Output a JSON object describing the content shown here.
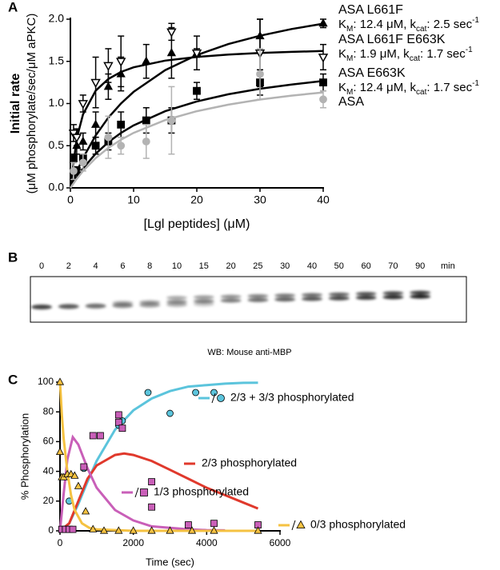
{
  "chart_data": [
    {
      "type": "scatter",
      "panel": "A",
      "y_title": "Initial rate",
      "y_subtitle": "(μM phosphorylate/sec/μM aPKC)",
      "x_title": "[Lgl peptides] (μM)",
      "xlim": [
        0,
        40
      ],
      "xticks": [
        0,
        10,
        20,
        30,
        40
      ],
      "ylim": [
        0,
        2
      ],
      "yticks": [
        {
          "value": 0,
          "label": "0.0"
        },
        {
          "value": 0.5,
          "label": "0.5"
        },
        {
          "value": 1,
          "label": "1.0"
        },
        {
          "value": 1.5,
          "label": "1.5"
        },
        {
          "value": 2,
          "label": "2.0"
        }
      ],
      "series": [
        {
          "name": "ASA L661F",
          "annotation": [
            "K",
            "M",
            ": 12.4 μM,  k",
            "cat",
            ": 2.5 sec",
            "-1"
          ],
          "color": "#000000",
          "marker": "triangle",
          "x": [
            1,
            2,
            4,
            6,
            8,
            12,
            16,
            20,
            30,
            40
          ],
          "values": [
            0.5,
            0.55,
            0.75,
            1.2,
            1.35,
            1.5,
            1.6,
            1.6,
            1.8,
            1.95
          ],
          "errors": [
            0.1,
            0.1,
            0.15,
            0.15,
            0.2,
            0.2,
            0.3,
            0.2,
            0.2,
            0.05
          ],
          "fit": {
            "x": [
              0,
              1,
              2,
              4,
              6,
              8,
              10,
              15,
              20,
              25,
              30,
              35,
              40
            ],
            "values": [
              0,
              0.19,
              0.354,
              0.622,
              0.832,
              1.0,
              1.138,
              1.396,
              1.574,
              1.705,
              1.804,
              1.883,
              1.947
            ]
          }
        },
        {
          "name": "ASA L661F E663K",
          "annotation": [
            "K",
            "M",
            ": 1.9 μM,  k",
            "cat",
            ": 1.7 sec",
            "-1"
          ],
          "color": "#000000",
          "marker": "triangle-down-open",
          "x": [
            0.5,
            1,
            2,
            4,
            6,
            8,
            16,
            20,
            30,
            40
          ],
          "values": [
            0.65,
            0.6,
            1.0,
            1.25,
            1.45,
            1.5,
            1.85,
            1.6,
            1.6,
            1.55
          ],
          "errors": [
            0.1,
            0.1,
            0.1,
            0.3,
            0.2,
            0.3,
            0.1,
            0.05,
            0.4,
            0.15
          ],
          "fit": {
            "x": [
              0,
              1,
              2,
              4,
              6,
              8,
              10,
              15,
              20,
              25,
              30,
              35,
              40
            ],
            "values": [
              0,
              0.586,
              0.872,
              1.153,
              1.291,
              1.374,
              1.429,
              1.509,
              1.553,
              1.58,
              1.599,
              1.612,
              1.623
            ]
          }
        },
        {
          "name": "ASA E663K",
          "annotation": [
            "K",
            "M",
            ": 12.4 μM,  k",
            "cat",
            ": 1.7 sec",
            "-1"
          ],
          "color": "#000000",
          "marker": "square",
          "x": [
            0.5,
            1,
            2,
            4,
            6,
            8,
            12,
            16,
            20,
            30,
            40
          ],
          "values": [
            0.35,
            0.2,
            0.35,
            0.5,
            0.55,
            0.75,
            0.8,
            0.8,
            1.15,
            1.25,
            1.25
          ],
          "errors": [
            0.05,
            0.05,
            0.05,
            0.1,
            0.1,
            0.15,
            0.15,
            0.15,
            0.1,
            0.15,
            0.1
          ],
          "fit": {
            "x": [
              0,
              1,
              2,
              4,
              6,
              8,
              10,
              15,
              20,
              25,
              30,
              35,
              40
            ],
            "values": [
              0,
              0.124,
              0.231,
              0.405,
              0.541,
              0.651,
              0.741,
              0.909,
              1.025,
              1.11,
              1.175,
              1.226,
              1.267
            ]
          }
        },
        {
          "name": "ASA",
          "color": "#b3b3b3",
          "marker": "circle",
          "x": [
            0.5,
            2,
            6,
            8,
            12,
            16,
            30,
            40
          ],
          "values": [
            0.2,
            0.3,
            0.6,
            0.5,
            0.55,
            0.8,
            1.35,
            1.05
          ],
          "errors": [
            0.1,
            0.1,
            0.25,
            0.1,
            0.2,
            0.4,
            0.3,
            0.1
          ],
          "fit": {
            "x": [
              0,
              1,
              2,
              4,
              6,
              8,
              10,
              15,
              20,
              25,
              30,
              35,
              40
            ],
            "values": [
              0,
              0.107,
              0.2,
              0.353,
              0.474,
              0.571,
              0.652,
              0.804,
              0.909,
              0.987,
              1.047,
              1.094,
              1.132
            ]
          }
        }
      ]
    },
    {
      "type": "scatter",
      "panel": "C",
      "y_title": "% Phosphorylation",
      "x_title": "Time (sec)",
      "xlim": [
        0,
        6000
      ],
      "xticks": [
        0,
        2000,
        4000,
        6000
      ],
      "ylim": [
        0,
        100
      ],
      "yticks": [
        0,
        20,
        40,
        60,
        80,
        100
      ],
      "series": [
        {
          "name": "2/3 + 3/3 phosphorylated",
          "color": "#5bc4dc",
          "marker": "circle",
          "x": [
            250,
            650,
            1600,
            1700,
            2400,
            3000,
            3700,
            4200
          ],
          "values": [
            20,
            42,
            71,
            74,
            93,
            79,
            93,
            93
          ],
          "fit": {
            "x": [
              0,
              250,
              500,
              750,
              1000,
              1500,
              2000,
              2500,
              3000,
              3500,
              4000,
              4500,
              5000,
              5400
            ],
            "values": [
              0,
              5,
              18,
              33,
              47,
              68,
              81,
              89,
              94,
              97,
              98,
              99,
              99.5,
              99.6
            ]
          }
        },
        {
          "name": "2/3 phosphorylated",
          "color": "#e0392c",
          "fit": {
            "x": [
              0,
              250,
              500,
              750,
              1000,
              1500,
              1750,
              2000,
              2500,
              3000,
              3500,
              4000,
              4500,
              5000,
              5400
            ],
            "values": [
              0,
              5,
              20,
              35,
              44,
              51,
              52,
              51,
              47,
              41,
              35,
              29,
              24,
              19,
              15
            ]
          }
        },
        {
          "name": "1/3 phosphorylated",
          "color": "#c95fb8",
          "marker": "square",
          "x": [
            50,
            150,
            250,
            350,
            650,
            900,
            1100,
            1600,
            1600,
            1700,
            2500,
            2500,
            3500,
            4200,
            5400
          ],
          "values": [
            1,
            1,
            1,
            1,
            43,
            64,
            64,
            73,
            78,
            69,
            33,
            16,
            4,
            5,
            4
          ],
          "fit": {
            "x": [
              0,
              100,
              200,
              350,
              500,
              750,
              1000,
              1500,
              2000,
              2500,
              3000,
              3500,
              4000,
              4500
            ],
            "values": [
              0,
              25,
              48,
              63,
              58,
              42,
              29,
              14,
              7,
              3,
              2,
              1,
              0.5,
              0.3
            ]
          }
        },
        {
          "name": "0/3 phosphorylated",
          "color": "#f5c242",
          "marker": "triangle",
          "x": [
            0,
            0,
            50,
            100,
            200,
            300,
            400,
            500,
            700,
            900,
            1200,
            1600,
            2000,
            2500,
            3000,
            3600,
            4200,
            5400
          ],
          "values": [
            100,
            53,
            36,
            36,
            38,
            38,
            37,
            30,
            13,
            1,
            0,
            0,
            0,
            0,
            0,
            0,
            0,
            0
          ],
          "fit": {
            "x": [
              0,
              25,
              50,
              100,
              200,
              300,
              400,
              600,
              800,
              1000,
              2000,
              5400
            ],
            "values": [
              100,
              90,
              78,
              62,
              40,
              24,
              14,
              5,
              2,
              1,
              0,
              0
            ]
          }
        }
      ]
    }
  ],
  "blot": {
    "panel": "B",
    "lanes": [
      "0",
      "2",
      "4",
      "6",
      "8",
      "10",
      "15",
      "20",
      "25",
      "30",
      "40",
      "50",
      "60",
      "70",
      "90"
    ],
    "unit": "min",
    "caption": "WB: Mouse anti-MBP"
  }
}
